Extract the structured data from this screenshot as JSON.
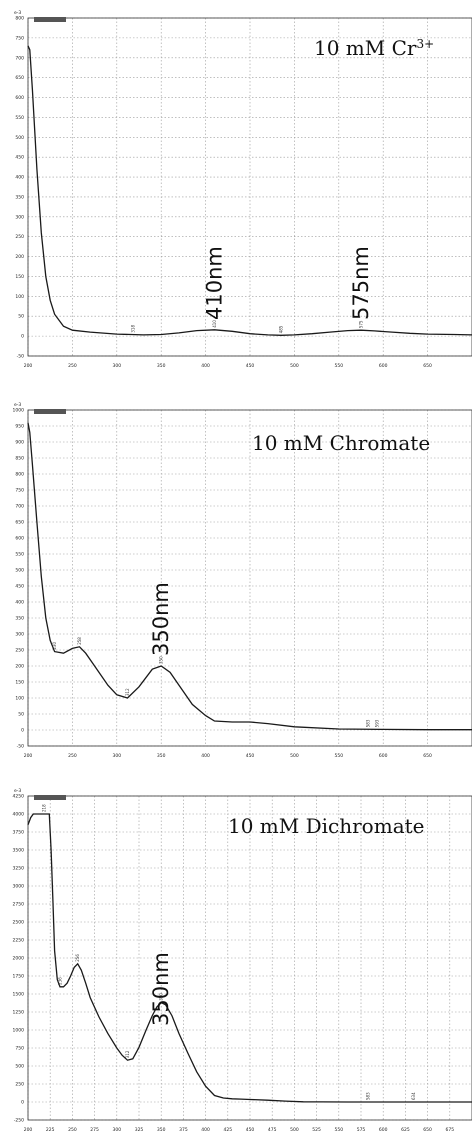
{
  "chart_data": [
    {
      "type": "line",
      "title": "10 mM Cr³⁺",
      "title_base": "10 mM Cr",
      "title_sup": "3+",
      "y_exponent": "e-3",
      "xlim": [
        200,
        700
      ],
      "ylim": [
        -50,
        800
      ],
      "x_ticks": [
        "200",
        "250",
        "300",
        "350",
        "400",
        "450",
        "500",
        "550",
        "600",
        "650"
      ],
      "y_ticks": [
        "800",
        "750",
        "700",
        "650",
        "600",
        "550",
        "500",
        "450",
        "400",
        "350",
        "300",
        "250",
        "200",
        "150",
        "100",
        "50",
        "0",
        "-50"
      ],
      "grid": true,
      "annotations": [
        {
          "text": "410nm",
          "x": 410
        },
        {
          "text": "575nm",
          "x": 575
        }
      ],
      "peak_labels": [
        {
          "text": "318",
          "x": 318
        },
        {
          "text": "410",
          "x": 410
        },
        {
          "text": "485",
          "x": 485
        },
        {
          "text": "575",
          "x": 575
        }
      ],
      "series": [
        {
          "x": [
            200,
            202,
            205,
            210,
            215,
            220,
            225,
            230,
            240,
            250,
            270,
            300,
            330,
            350,
            370,
            390,
            410,
            430,
            450,
            470,
            485,
            500,
            520,
            540,
            560,
            575,
            590,
            610,
            630,
            650,
            680,
            700
          ],
          "y": [
            730,
            720,
            620,
            420,
            260,
            150,
            90,
            55,
            25,
            15,
            10,
            5,
            3,
            4,
            8,
            14,
            16,
            12,
            6,
            3,
            2,
            3,
            6,
            10,
            14,
            15,
            13,
            10,
            7,
            5,
            4,
            3
          ]
        }
      ]
    },
    {
      "type": "line",
      "title": "10 mM Chromate",
      "y_exponent": "e-3",
      "xlim": [
        200,
        700
      ],
      "ylim": [
        -50,
        1000
      ],
      "x_ticks": [
        "200",
        "250",
        "300",
        "350",
        "400",
        "450",
        "500",
        "550",
        "600",
        "650"
      ],
      "y_ticks": [
        "1000",
        "950",
        "900",
        "850",
        "800",
        "750",
        "700",
        "650",
        "600",
        "550",
        "500",
        "450",
        "400",
        "350",
        "300",
        "250",
        "200",
        "150",
        "100",
        "50",
        "0",
        "-50"
      ],
      "grid": true,
      "annotations": [
        {
          "text": "350nm",
          "x": 350
        }
      ],
      "peak_labels": [
        {
          "text": "230",
          "x": 230
        },
        {
          "text": "258",
          "x": 258
        },
        {
          "text": "312",
          "x": 312
        },
        {
          "text": "350",
          "x": 350
        },
        {
          "text": "583",
          "x": 583
        },
        {
          "text": "593",
          "x": 593
        }
      ],
      "series": [
        {
          "x": [
            200,
            202,
            205,
            210,
            215,
            220,
            225,
            230,
            240,
            250,
            258,
            265,
            275,
            290,
            300,
            312,
            325,
            340,
            350,
            360,
            370,
            385,
            400,
            410,
            430,
            450,
            470,
            500,
            550,
            600,
            650,
            700
          ],
          "y": [
            960,
            930,
            830,
            650,
            480,
            350,
            280,
            245,
            240,
            255,
            260,
            240,
            200,
            140,
            110,
            100,
            135,
            190,
            200,
            180,
            140,
            80,
            45,
            28,
            25,
            25,
            20,
            10,
            3,
            2,
            1,
            1
          ]
        }
      ]
    },
    {
      "type": "line",
      "title": "10 mM Dichromate",
      "y_exponent": "e-3",
      "xlim": [
        200,
        700
      ],
      "ylim": [
        -250,
        4250
      ],
      "x_ticks": [
        "200",
        "225",
        "250",
        "275",
        "300",
        "325",
        "350",
        "375",
        "400",
        "425",
        "450",
        "475",
        "500",
        "525",
        "550",
        "575",
        "600",
        "625",
        "650",
        "675"
      ],
      "y_ticks": [
        "4250",
        "4000",
        "3750",
        "3500",
        "3250",
        "3000",
        "2750",
        "2500",
        "2250",
        "2000",
        "1750",
        "1500",
        "1250",
        "1000",
        "750",
        "500",
        "250",
        "0",
        "-250"
      ],
      "grid": true,
      "annotations": [
        {
          "text": "350nm",
          "x": 350
        }
      ],
      "peak_labels": [
        {
          "text": "218",
          "x": 218
        },
        {
          "text": "236",
          "x": 236
        },
        {
          "text": "256",
          "x": 256
        },
        {
          "text": "312",
          "x": 312
        },
        {
          "text": "350",
          "x": 350
        },
        {
          "text": "583",
          "x": 583
        },
        {
          "text": "634",
          "x": 634
        }
      ],
      "series": [
        {
          "x": [
            200,
            203,
            206,
            210,
            214,
            218,
            222,
            224,
            226,
            228,
            230,
            233,
            236,
            240,
            244,
            248,
            252,
            256,
            260,
            265,
            270,
            280,
            290,
            300,
            306,
            312,
            318,
            325,
            333,
            340,
            345,
            350,
            355,
            362,
            370,
            380,
            390,
            400,
            410,
            420,
            430,
            440,
            450,
            470,
            490,
            510,
            530,
            560,
            600,
            640,
            680,
            700
          ],
          "y": [
            3850,
            3950,
            4000,
            4000,
            4000,
            4000,
            4000,
            4000,
            3500,
            2800,
            2100,
            1700,
            1600,
            1600,
            1650,
            1750,
            1870,
            1920,
            1830,
            1650,
            1450,
            1180,
            950,
            750,
            650,
            580,
            600,
            760,
            1000,
            1200,
            1320,
            1380,
            1350,
            1200,
            950,
            680,
            420,
            220,
            90,
            55,
            45,
            40,
            35,
            25,
            12,
            3,
            1,
            0,
            0,
            0,
            0,
            0
          ]
        }
      ]
    }
  ]
}
